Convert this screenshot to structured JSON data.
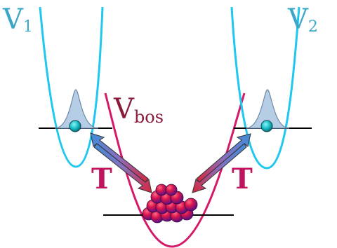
{
  "labels": {
    "v1_main": "V",
    "v1_sub": "1",
    "v2_main": "V",
    "v2_sub": "2",
    "vbos_main": "V",
    "vbos_sub": "bos",
    "t_left": "T",
    "t_right": "T"
  },
  "colors": {
    "impurity_potential": "#1ec8ee",
    "bos_potential": "#d41a6a",
    "label_v": "#3aa7c7",
    "label_bos": "#8b1a3a",
    "label_t": "#c0155e",
    "impurity_dot": "#19c0c8",
    "wavepacket_fill": "#b5cde5",
    "boson_red": "#d9154a",
    "boson_purple": "#6a0f8f",
    "arrow_blue": "#3c8ed9",
    "arrow_red": "#d8253b",
    "level_line": "#000000"
  }
}
